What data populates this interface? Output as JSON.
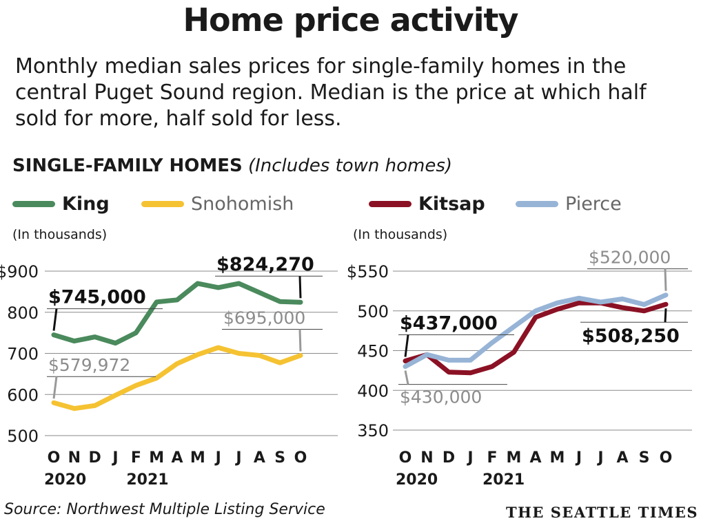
{
  "header": {
    "title": "Home price activity",
    "subtitle": "Monthly median sales prices for single-family homes in the central Puget Sound region. Median is the price at which half sold for more, half sold for less.",
    "section_bold": "SINGLE-FAMILY HOMES",
    "section_italic": "(Includes town homes)"
  },
  "legend": [
    {
      "label": "King",
      "color": "#4a8a5c",
      "bold": true
    },
    {
      "label": "Snohomish",
      "color": "#f5c232",
      "bold": false
    },
    {
      "label": "Kitsap",
      "color": "#8b1124",
      "bold": true
    },
    {
      "label": "Pierce",
      "color": "#97b4d6",
      "bold": false
    }
  ],
  "footer": {
    "source": "Source: Northwest Multiple Listing Service",
    "brand": "THE SEATTLE TIMES"
  },
  "chart_data": [
    {
      "type": "line",
      "unit_label": "(In thousands)",
      "x": [
        "O",
        "N",
        "D",
        "J",
        "F",
        "M",
        "A",
        "M",
        "J",
        "J",
        "A",
        "S",
        "O"
      ],
      "year_labels": [
        {
          "label": "2020",
          "at": 0
        },
        {
          "label": "2021",
          "at": 4
        }
      ],
      "ylim": [
        500,
        900
      ],
      "yticks": [
        500,
        600,
        700,
        800,
        900
      ],
      "ytick_labels": [
        "500",
        "600",
        "700",
        "800",
        "$900"
      ],
      "grid": true,
      "series": [
        {
          "name": "King",
          "color": "#4a8a5c",
          "values": [
            745,
            730,
            740,
            725,
            750,
            825,
            830,
            870,
            860,
            870,
            848,
            826,
            824.27
          ]
        },
        {
          "name": "Snohomish",
          "color": "#f5c232",
          "values": [
            579.972,
            566,
            573,
            598,
            622,
            640,
            675,
            697,
            714,
            700,
            695,
            677,
            695
          ]
        }
      ],
      "annotations": [
        {
          "series": "King",
          "index": 0,
          "text": "$745,000",
          "style": "bold",
          "side": "above"
        },
        {
          "series": "King",
          "index": 12,
          "text": "$824,270",
          "style": "bold",
          "side": "above"
        },
        {
          "series": "Snohomish",
          "index": 0,
          "text": "$579,972",
          "style": "light",
          "side": "above"
        },
        {
          "series": "Snohomish",
          "index": 12,
          "text": "$695,000",
          "style": "light",
          "side": "above"
        }
      ]
    },
    {
      "type": "line",
      "unit_label": "(In thousands)",
      "x": [
        "O",
        "N",
        "D",
        "J",
        "F",
        "M",
        "A",
        "M",
        "J",
        "J",
        "A",
        "S",
        "O"
      ],
      "year_labels": [
        {
          "label": "2020",
          "at": 0
        },
        {
          "label": "2021",
          "at": 4
        }
      ],
      "ylim": [
        350,
        550
      ],
      "yticks": [
        350,
        400,
        450,
        500,
        550
      ],
      "ytick_labels": [
        "350",
        "400",
        "450",
        "500",
        "$550"
      ],
      "grid": true,
      "series": [
        {
          "name": "Kitsap",
          "color": "#8b1124",
          "values": [
            437,
            445,
            423,
            422,
            430,
            448,
            492,
            502,
            510,
            510,
            504,
            500,
            508.25
          ]
        },
        {
          "name": "Pierce",
          "color": "#97b4d6",
          "values": [
            430,
            445,
            438,
            438,
            460,
            480,
            500,
            510,
            516,
            511,
            515,
            508,
            520
          ]
        }
      ],
      "annotations": [
        {
          "series": "Kitsap",
          "index": 0,
          "text": "$437,000",
          "style": "bold",
          "side": "above"
        },
        {
          "series": "Kitsap",
          "index": 12,
          "text": "$508,250",
          "style": "bold",
          "side": "below"
        },
        {
          "series": "Pierce",
          "index": 0,
          "text": "$430,000",
          "style": "light",
          "side": "below"
        },
        {
          "series": "Pierce",
          "index": 12,
          "text": "$520,000",
          "style": "light",
          "side": "above"
        }
      ]
    }
  ]
}
